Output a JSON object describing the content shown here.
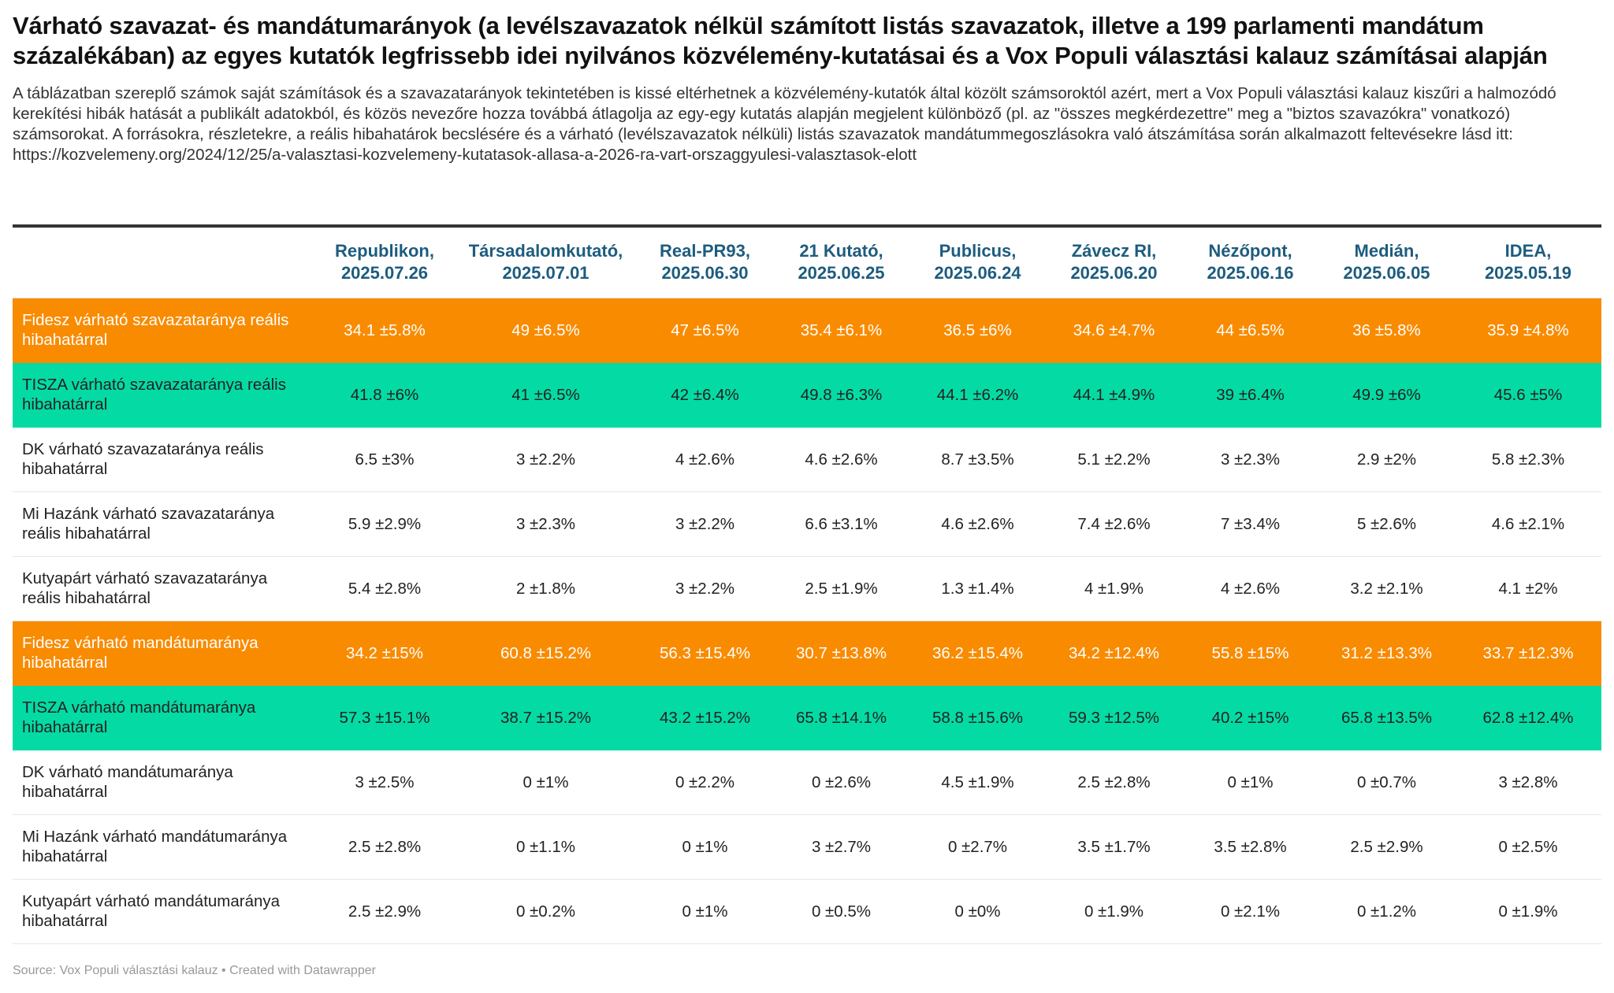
{
  "title": "Várható szavazat- és mandátumarányok (a levélszavazatok nélkül számított listás szavazatok, illetve a 199 parlamenti mandátum százalékában) az egyes kutatók legfrissebb idei nyilvános közvélemény-kutatásai és a Vox Populi választási kalauz számításai alapján",
  "description": "A táblázatban szereplő számok saját számítások és a szavazatarányok tekintetében is kissé eltérhetnek a közvélemény-kutatók által közölt számsoroktól azért, mert a Vox Populi választási kalauz kiszűri a halmozódó kerekítési hibák hatását a publikált adatokból, és közös nevezőre hozza továbbá átlagolja az egy-egy kutatás alapján megjelent különböző (pl. az \"összes megkérdezettre\" meg a \"biztos szavazókra\" vonatkozó) számsorokat. A forrásokra, részletekre, a reális hibahatárok becslésére és a várható (levélszavazatok nélküli) listás szavazatok mandátummegoszlásokra való átszámítása során alkalmazott feltevésekre lásd itt: https://kozvelemeny.org/2024/12/25/a-valasztasi-kozvelemeny-kutatasok-allasa-a-2026-ra-vart-orszaggyulesi-valasztasok-elott",
  "footer": "Source: Vox Populi választási kalauz • Created with Datawrapper",
  "colors": {
    "fidesz": "#f98b00",
    "tisza": "#04dba4",
    "header_text": "#1d5c7e"
  },
  "chart_data": {
    "type": "table",
    "columns": [
      {
        "name": "Republikon,",
        "date": "2025.07.26"
      },
      {
        "name": "Társadalomkutató,",
        "date": "2025.07.01"
      },
      {
        "name": "Real-PR93,",
        "date": "2025.06.30"
      },
      {
        "name": "21 Kutató,",
        "date": "2025.06.25"
      },
      {
        "name": "Publicus,",
        "date": "2025.06.24"
      },
      {
        "name": "Závecz RI,",
        "date": "2025.06.20"
      },
      {
        "name": "Nézőpont,",
        "date": "2025.06.16"
      },
      {
        "name": "Medián,",
        "date": "2025.06.05"
      },
      {
        "name": "IDEA,",
        "date": "2025.05.19"
      }
    ],
    "rows": [
      {
        "party": "fidesz",
        "label": "Fidesz várható szavazataránya reális hibahatárral",
        "cells": [
          "34.1 ±5.8%",
          "49 ±6.5%",
          "47 ±6.5%",
          "35.4 ±6.1%",
          "36.5 ±6%",
          "34.6 ±4.7%",
          "44 ±6.5%",
          "36 ±5.8%",
          "35.9 ±4.8%"
        ]
      },
      {
        "party": "tisza",
        "label": "TISZA várható szavazataránya reális hibahatárral",
        "cells": [
          "41.8 ±6%",
          "41 ±6.5%",
          "42 ±6.4%",
          "49.8 ±6.3%",
          "44.1 ±6.2%",
          "44.1 ±4.9%",
          "39 ±6.4%",
          "49.9 ±6%",
          "45.6 ±5%"
        ]
      },
      {
        "party": "other",
        "label": "DK várható szavazataránya reális hibahatárral",
        "cells": [
          "6.5 ±3%",
          "3 ±2.2%",
          "4 ±2.6%",
          "4.6 ±2.6%",
          "8.7 ±3.5%",
          "5.1 ±2.2%",
          "3 ±2.3%",
          "2.9 ±2%",
          "5.8 ±2.3%"
        ]
      },
      {
        "party": "other",
        "label": "Mi Hazánk várható szavazataránya reális hibahatárral",
        "cells": [
          "5.9 ±2.9%",
          "3 ±2.3%",
          "3 ±2.2%",
          "6.6 ±3.1%",
          "4.6 ±2.6%",
          "7.4 ±2.6%",
          "7 ±3.4%",
          "5 ±2.6%",
          "4.6 ±2.1%"
        ]
      },
      {
        "party": "other",
        "label": "Kutyapárt várható szavazataránya reális hibahatárral",
        "cells": [
          "5.4 ±2.8%",
          "2 ±1.8%",
          "3 ±2.2%",
          "2.5 ±1.9%",
          "1.3 ±1.4%",
          "4 ±1.9%",
          "4 ±2.6%",
          "3.2 ±2.1%",
          "4.1 ±2%"
        ]
      },
      {
        "party": "fidesz",
        "label": "Fidesz várható mandátumaránya hibahatárral",
        "cells": [
          "34.2 ±15%",
          "60.8 ±15.2%",
          "56.3 ±15.4%",
          "30.7 ±13.8%",
          "36.2 ±15.4%",
          "34.2 ±12.4%",
          "55.8 ±15%",
          "31.2 ±13.3%",
          "33.7 ±12.3%"
        ]
      },
      {
        "party": "tisza",
        "label": "TISZA várható mandátumaránya hibahatárral",
        "cells": [
          "57.3 ±15.1%",
          "38.7 ±15.2%",
          "43.2 ±15.2%",
          "65.8 ±14.1%",
          "58.8 ±15.6%",
          "59.3 ±12.5%",
          "40.2 ±15%",
          "65.8 ±13.5%",
          "62.8 ±12.4%"
        ]
      },
      {
        "party": "other",
        "label": "DK várható mandátumaránya hibahatárral",
        "cells": [
          "3 ±2.5%",
          "0 ±1%",
          "0 ±2.2%",
          "0 ±2.6%",
          "4.5 ±1.9%",
          "2.5 ±2.8%",
          "0 ±1%",
          "0 ±0.7%",
          "3 ±2.8%"
        ]
      },
      {
        "party": "other",
        "label": "Mi Hazánk várható mandátumaránya hibahatárral",
        "cells": [
          "2.5 ±2.8%",
          "0 ±1.1%",
          "0 ±1%",
          "3 ±2.7%",
          "0 ±2.7%",
          "3.5 ±1.7%",
          "3.5 ±2.8%",
          "2.5 ±2.9%",
          "0 ±2.5%"
        ]
      },
      {
        "party": "other",
        "label": "Kutyapárt várható mandátumaránya hibahatárral",
        "cells": [
          "2.5 ±2.9%",
          "0 ±0.2%",
          "0 ±1%",
          "0 ±0.5%",
          "0 ±0%",
          "0 ±1.9%",
          "0 ±2.1%",
          "0 ±1.2%",
          "0 ±1.9%"
        ]
      }
    ]
  }
}
